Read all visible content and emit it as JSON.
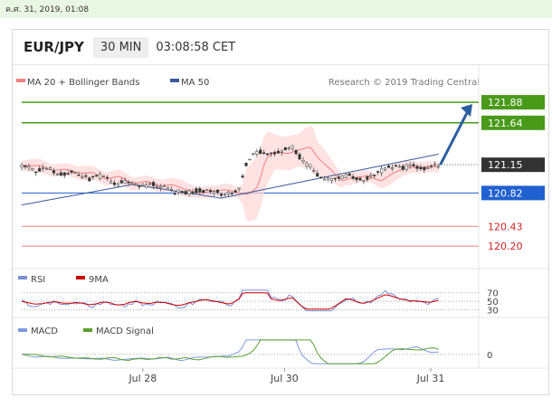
{
  "datetime": "ค.ศ. 31, 2019, 01:08",
  "header": {
    "symbol": "EUR/JPY",
    "timeframe": "30 MIN",
    "time": "03:08:58 CET"
  },
  "credit": "Research © 2019 Trading Central",
  "colors": {
    "ma20": "#f08080",
    "ma50": "#3a5a9a",
    "bands": "#ffd6d6",
    "resistance": "#4a9a1a",
    "support": "#2060d0",
    "support2": "#f08080",
    "current": "#333333",
    "rsi": "#7a8fd8",
    "rsi9ma": "#cc0000",
    "macd": "#7a9ae0",
    "macd_signal": "#5aa02c",
    "arrow": "#2a5fa0"
  },
  "chart_data": [
    {
      "type": "candlestick",
      "legend": [
        {
          "name": "MA 20 + Bollinger Bands",
          "color": "#f08080"
        },
        {
          "name": "MA 50",
          "color": "#3a5a9a"
        }
      ],
      "ylim": [
        120.0,
        122.05
      ],
      "x_ticks": [
        {
          "label": "Jul 28",
          "pos": 0.265
        },
        {
          "label": "Jul 30",
          "pos": 0.575
        },
        {
          "label": "Jul 31",
          "pos": 0.895
        }
      ],
      "levels": [
        {
          "value": 121.88,
          "label": "121.88",
          "kind": "resistance"
        },
        {
          "value": 121.64,
          "label": "121.64",
          "kind": "resistance"
        },
        {
          "value": 121.15,
          "label": "121.15",
          "kind": "current"
        },
        {
          "value": 120.82,
          "label": "120.82",
          "kind": "support"
        },
        {
          "value": 120.43,
          "label": "120.43",
          "kind": "support2"
        },
        {
          "value": 120.2,
          "label": "120.20",
          "kind": "support2"
        }
      ],
      "price_path": [
        [
          0.0,
          121.14
        ],
        [
          0.03,
          121.08
        ],
        [
          0.06,
          121.1
        ],
        [
          0.09,
          121.05
        ],
        [
          0.12,
          121.06
        ],
        [
          0.15,
          120.98
        ],
        [
          0.18,
          121.02
        ],
        [
          0.21,
          120.92
        ],
        [
          0.24,
          120.96
        ],
        [
          0.27,
          120.9
        ],
        [
          0.3,
          120.92
        ],
        [
          0.33,
          120.86
        ],
        [
          0.36,
          120.82
        ],
        [
          0.39,
          120.84
        ],
        [
          0.42,
          120.86
        ],
        [
          0.45,
          120.82
        ],
        [
          0.47,
          120.8
        ],
        [
          0.49,
          120.88
        ],
        [
          0.5,
          121.02
        ],
        [
          0.51,
          121.22
        ],
        [
          0.53,
          121.3
        ],
        [
          0.56,
          121.28
        ],
        [
          0.59,
          121.33
        ],
        [
          0.61,
          121.36
        ],
        [
          0.63,
          121.22
        ],
        [
          0.66,
          121.08
        ],
        [
          0.68,
          120.96
        ],
        [
          0.71,
          121.0
        ],
        [
          0.74,
          121.02
        ],
        [
          0.77,
          120.96
        ],
        [
          0.8,
          121.06
        ],
        [
          0.83,
          121.12
        ],
        [
          0.86,
          121.12
        ],
        [
          0.89,
          121.13
        ],
        [
          0.92,
          121.1
        ],
        [
          0.94,
          121.15
        ]
      ],
      "projection": {
        "from": [
          0.94,
          121.15
        ],
        "to": [
          1.0,
          121.86
        ]
      }
    },
    {
      "type": "line",
      "legend": [
        {
          "name": "RSI",
          "color": "#7a8fd8"
        },
        {
          "name": "9MA",
          "color": "#cc0000"
        }
      ],
      "ticks": [
        "70",
        "50",
        "30"
      ],
      "ylim": [
        25,
        80
      ],
      "levels": [
        70,
        50,
        30
      ]
    },
    {
      "type": "line",
      "legend": [
        {
          "name": "MACD",
          "color": "#7a9ae0"
        },
        {
          "name": "MACD Signal",
          "color": "#5aa02c"
        }
      ],
      "ticks": [
        "0"
      ],
      "ylim": [
        -0.12,
        0.18
      ]
    }
  ]
}
